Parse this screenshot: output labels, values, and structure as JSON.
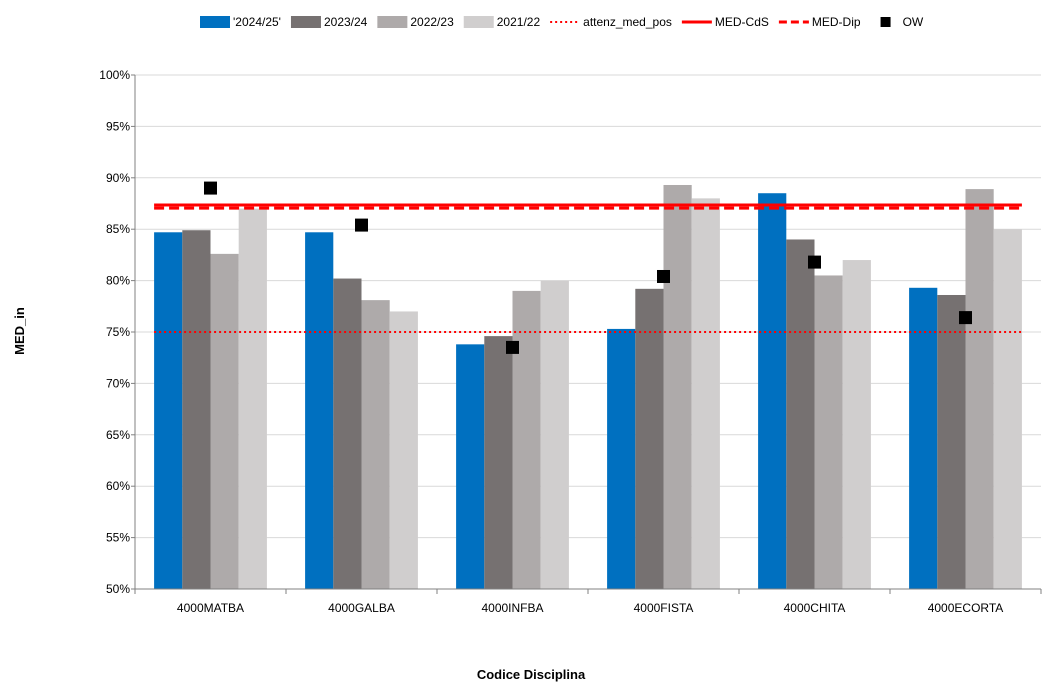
{
  "chart_data": {
    "type": "bar",
    "categories": [
      "4000MATBA",
      "4000GALBA",
      "4000INFBA",
      "4000FISTA",
      "4000CHITA",
      "4000ECORTA"
    ],
    "series": [
      {
        "name": "'2024/25'",
        "color": "#0070c0",
        "values": [
          84.7,
          84.7,
          73.8,
          75.3,
          88.5,
          79.3
        ]
      },
      {
        "name": "2023/24",
        "color": "#767171",
        "values": [
          84.9,
          80.2,
          74.6,
          79.2,
          84.0,
          78.6
        ]
      },
      {
        "name": "2022/23",
        "color": "#aeaaaa",
        "values": [
          82.6,
          78.1,
          79.0,
          89.3,
          80.5,
          88.9
        ]
      },
      {
        "name": "2021/22",
        "color": "#d0cece",
        "values": [
          87.0,
          77.0,
          80.0,
          88.0,
          82.0,
          85.0
        ]
      }
    ],
    "reference_lines": [
      {
        "name": "attenz_med_pos",
        "value": 75.0,
        "color": "#ff0000",
        "style": "dotted"
      },
      {
        "name": "MED-CdS",
        "value": 87.35,
        "color": "#ff0000",
        "style": "solid"
      },
      {
        "name": "MED-Dip",
        "value": 87.05,
        "color": "#ff0000",
        "style": "dashed"
      }
    ],
    "markers": {
      "name": "OW",
      "color": "#000000",
      "values": [
        89.0,
        85.4,
        73.5,
        80.4,
        81.8,
        76.4
      ]
    },
    "xlabel": "Codice Disciplina",
    "ylabel": "MED_in",
    "ylim": [
      50,
      100
    ],
    "y_ticks": [
      "50%",
      "55%",
      "60%",
      "65%",
      "70%",
      "75%",
      "80%",
      "85%",
      "90%",
      "95%",
      "100%"
    ],
    "grid": true,
    "legend_position": "top"
  }
}
